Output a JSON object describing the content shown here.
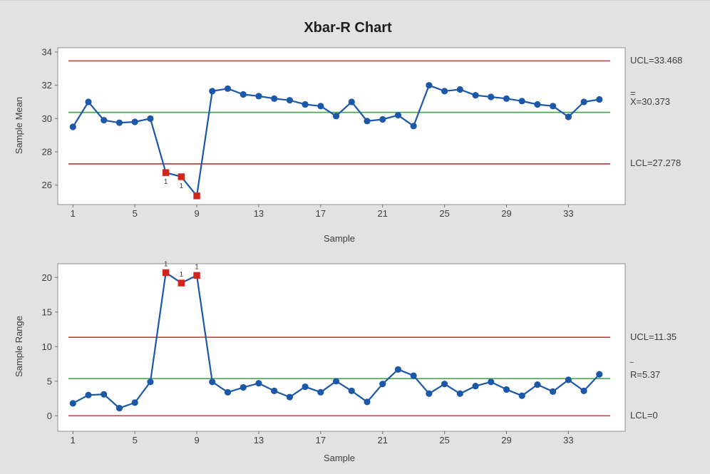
{
  "window": {
    "background": "#e2e2e2"
  },
  "chart": {
    "title": "Xbar-R Chart",
    "colors": {
      "line_blue": "#1c58a7",
      "limit_red": "#bf4340",
      "center_green": "#4ea652",
      "out_red": "#d2251c",
      "plot_bg": "#ffffff",
      "plot_border": "#8f8f8f",
      "tick": "#707070",
      "text": "#3d3d3d",
      "flag_gray": "#7a7a7a"
    }
  },
  "chart_data": [
    {
      "type": "line",
      "name": "xbar-chart",
      "ylabel": "Sample Mean",
      "xlabel": "Sample",
      "x": [
        1,
        2,
        3,
        4,
        5,
        6,
        7,
        8,
        9,
        10,
        11,
        12,
        13,
        14,
        15,
        16,
        17,
        18,
        19,
        20,
        21,
        22,
        23,
        24,
        25,
        26,
        27,
        28,
        29,
        30,
        31,
        32,
        33,
        34,
        35
      ],
      "values": [
        29.5,
        31.0,
        29.9,
        29.75,
        29.8,
        30.0,
        26.75,
        26.5,
        25.35,
        31.65,
        31.8,
        31.45,
        31.35,
        31.2,
        31.1,
        30.85,
        30.75,
        30.15,
        31.0,
        29.85,
        29.95,
        30.2,
        29.55,
        32.0,
        31.65,
        31.75,
        31.4,
        31.3,
        31.2,
        31.05,
        30.85,
        30.75,
        30.1,
        31.0,
        31.15
      ],
      "ucl": 33.468,
      "center_line": 30.373,
      "lcl": 27.278,
      "ucl_label": "UCL=33.468",
      "center_bar": "=",
      "center_label": "X=30.373",
      "lcl_label": "LCL=27.278",
      "yticks": [
        26,
        28,
        30,
        32,
        34
      ],
      "xticks": [
        1,
        5,
        9,
        13,
        17,
        21,
        25,
        29,
        33
      ],
      "ylim": [
        24.8,
        34.3
      ],
      "xlim": [
        0,
        36.7
      ],
      "grid": false,
      "out_of_control": [
        7,
        8,
        9
      ],
      "flags": [
        {
          "sample": 7,
          "label": "1",
          "pos": "below"
        },
        {
          "sample": 8,
          "label": "1",
          "pos": "below"
        }
      ]
    },
    {
      "type": "line",
      "name": "r-chart",
      "ylabel": "Sample Range",
      "xlabel": "Sample",
      "x": [
        1,
        2,
        3,
        4,
        5,
        6,
        7,
        8,
        9,
        10,
        11,
        12,
        13,
        14,
        15,
        16,
        17,
        18,
        19,
        20,
        21,
        22,
        23,
        24,
        25,
        26,
        27,
        28,
        29,
        30,
        31,
        32,
        33,
        34,
        35
      ],
      "values": [
        1.8,
        3.0,
        3.1,
        1.1,
        1.9,
        4.9,
        20.7,
        19.2,
        20.3,
        4.9,
        3.4,
        4.1,
        4.7,
        3.6,
        2.7,
        4.2,
        3.4,
        5.0,
        3.6,
        2.0,
        4.6,
        6.7,
        5.8,
        3.2,
        4.6,
        3.2,
        4.3,
        4.9,
        3.8,
        2.9,
        4.5,
        3.5,
        5.2,
        3.6,
        6.0
      ],
      "ucl": 11.35,
      "center_line": 5.37,
      "lcl": 0,
      "ucl_label": "UCL=11.35",
      "center_bar": "‾",
      "center_label": "R=5.37",
      "lcl_label": "LCL=0",
      "yticks": [
        0,
        5,
        10,
        15,
        20
      ],
      "xticks": [
        1,
        5,
        9,
        13,
        17,
        21,
        25,
        29,
        33
      ],
      "ylim": [
        -2.3,
        22.4
      ],
      "xlim": [
        0,
        36.7
      ],
      "grid": false,
      "out_of_control": [
        7,
        8,
        9
      ],
      "flags": [
        {
          "sample": 7,
          "label": "1",
          "pos": "above"
        },
        {
          "sample": 8,
          "label": "1",
          "pos": "above"
        },
        {
          "sample": 9,
          "label": "1",
          "pos": "above"
        }
      ]
    }
  ]
}
